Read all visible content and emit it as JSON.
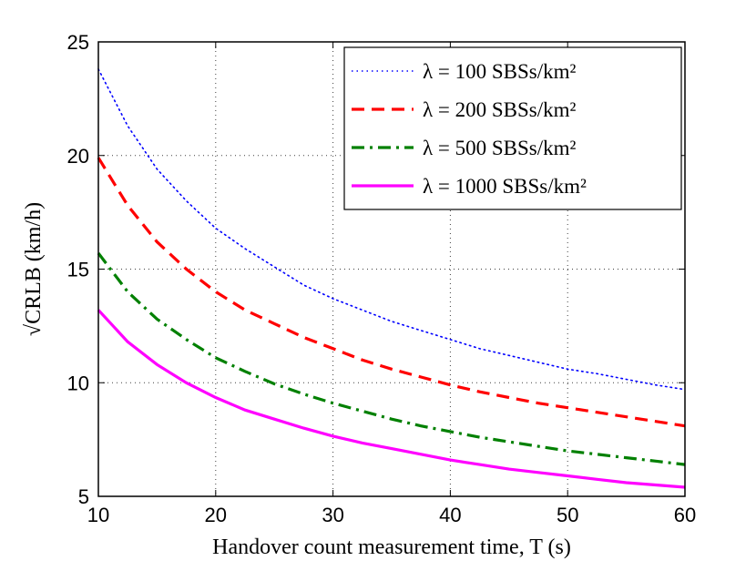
{
  "chart_data": {
    "type": "line",
    "xlabel": "Handover count measurement time, T (s)",
    "ylabel": "√CRLB (km/h)",
    "xlim": [
      10,
      60
    ],
    "ylim": [
      5,
      25
    ],
    "xticks": [
      10,
      20,
      30,
      40,
      50,
      60
    ],
    "yticks": [
      5,
      10,
      15,
      20,
      25
    ],
    "grid": true,
    "legend_position": "top-right",
    "series": [
      {
        "name": "λ = 100 SBSs/km²",
        "style": "dotted",
        "color": "#0000ff",
        "x": [
          10,
          12.5,
          15,
          17.5,
          20,
          22.5,
          25,
          27.5,
          30,
          32.5,
          35,
          37.5,
          40,
          42.5,
          45,
          47.5,
          50,
          52.5,
          55,
          57.5,
          60
        ],
        "y": [
          23.8,
          21.3,
          19.4,
          18.0,
          16.8,
          15.9,
          15.1,
          14.3,
          13.7,
          13.2,
          12.7,
          12.3,
          11.9,
          11.5,
          11.2,
          10.9,
          10.6,
          10.4,
          10.15,
          9.9,
          9.7
        ]
      },
      {
        "name": "λ = 200 SBSs/km²",
        "style": "dashed",
        "color": "#ff0000",
        "x": [
          10,
          12.5,
          15,
          17.5,
          20,
          22.5,
          25,
          27.5,
          30,
          32.5,
          35,
          37.5,
          40,
          42.5,
          45,
          47.5,
          50,
          52.5,
          55,
          57.5,
          60
        ],
        "y": [
          19.9,
          17.8,
          16.2,
          15.0,
          14.0,
          13.2,
          12.6,
          12.0,
          11.5,
          11.0,
          10.6,
          10.25,
          9.9,
          9.6,
          9.35,
          9.1,
          8.9,
          8.7,
          8.5,
          8.3,
          8.1
        ]
      },
      {
        "name": "λ = 500 SBSs/km²",
        "style": "dashdot",
        "color": "#008000",
        "x": [
          10,
          12.5,
          15,
          17.5,
          20,
          22.5,
          25,
          27.5,
          30,
          32.5,
          35,
          37.5,
          40,
          42.5,
          45,
          47.5,
          50,
          52.5,
          55,
          57.5,
          60
        ],
        "y": [
          15.7,
          14.0,
          12.8,
          11.9,
          11.1,
          10.5,
          9.95,
          9.5,
          9.1,
          8.75,
          8.4,
          8.1,
          7.85,
          7.6,
          7.4,
          7.2,
          7.0,
          6.85,
          6.7,
          6.55,
          6.4
        ]
      },
      {
        "name": "λ = 1000 SBSs/km²",
        "style": "solid",
        "color": "#ff00ff",
        "x": [
          10,
          12.5,
          15,
          17.5,
          20,
          22.5,
          25,
          27.5,
          30,
          32.5,
          35,
          37.5,
          40,
          42.5,
          45,
          47.5,
          50,
          52.5,
          55,
          57.5,
          60
        ],
        "y": [
          13.2,
          11.8,
          10.8,
          10.0,
          9.35,
          8.8,
          8.4,
          8.0,
          7.65,
          7.35,
          7.1,
          6.85,
          6.6,
          6.4,
          6.2,
          6.05,
          5.9,
          5.75,
          5.6,
          5.5,
          5.4
        ]
      }
    ]
  }
}
